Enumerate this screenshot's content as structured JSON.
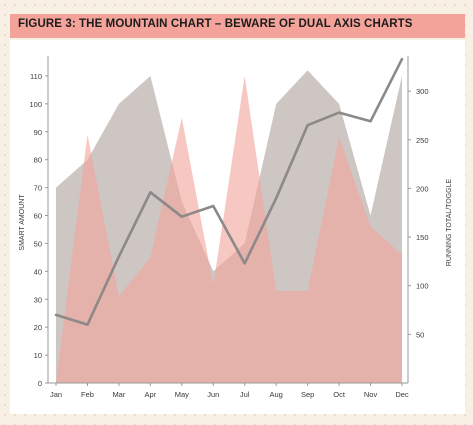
{
  "title": "FIGURE 3: THE MOUNTAIN CHART – BEWARE OF DUAL AXIS CHARTS",
  "colors": {
    "title_bar": "#f3a399",
    "grey_area": "#cbc3c0",
    "pink_area": "#f2a59c",
    "line": "#8c8988",
    "axis_text": "#3a3a3a"
  },
  "chart_data": {
    "type": "area",
    "categories": [
      "Jan",
      "Feb",
      "Mar",
      "Apr",
      "May",
      "Jun",
      "Jul",
      "Aug",
      "Sep",
      "Oct",
      "Nov",
      "Dec"
    ],
    "ylabel": "SMART AMOUNT",
    "y2label": "RUNNING TOTAL/TOGGLE",
    "ylim": [
      0,
      115
    ],
    "y_ticks": [
      0,
      10,
      20,
      30,
      40,
      50,
      60,
      70,
      80,
      90,
      100,
      110
    ],
    "y2lim": [
      0,
      330
    ],
    "y2_ticks": [
      50,
      100,
      150,
      200,
      250,
      300
    ],
    "grid": false,
    "series": [
      {
        "kind": "area",
        "axis": "left",
        "values": [
          70,
          80,
          100,
          110,
          65,
          40,
          50,
          100,
          112,
          100,
          60,
          110
        ]
      },
      {
        "kind": "area",
        "axis": "left",
        "values": [
          0,
          89,
          31,
          45,
          95,
          35,
          110,
          33,
          33,
          88,
          56,
          46
        ]
      },
      {
        "kind": "line",
        "axis": "right",
        "values": [
          70,
          60,
          130,
          196,
          171,
          182,
          123,
          190,
          265,
          278,
          269,
          333
        ]
      }
    ]
  }
}
